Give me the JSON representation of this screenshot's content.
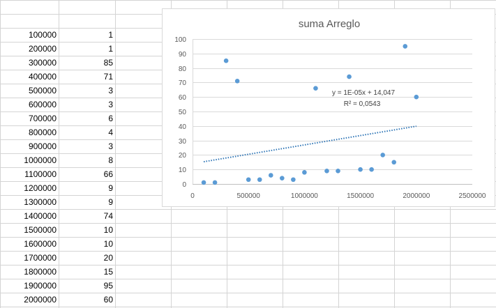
{
  "sheet": {
    "rows": [
      {
        "a": "100000",
        "b": "1"
      },
      {
        "a": "200000",
        "b": "1"
      },
      {
        "a": "300000",
        "b": "85"
      },
      {
        "a": "400000",
        "b": "71"
      },
      {
        "a": "500000",
        "b": "3"
      },
      {
        "a": "600000",
        "b": "3"
      },
      {
        "a": "700000",
        "b": "6"
      },
      {
        "a": "800000",
        "b": "4"
      },
      {
        "a": "900000",
        "b": "3"
      },
      {
        "a": "1000000",
        "b": "8"
      },
      {
        "a": "1100000",
        "b": "66"
      },
      {
        "a": "1200000",
        "b": "9"
      },
      {
        "a": "1300000",
        "b": "9"
      },
      {
        "a": "1400000",
        "b": "74"
      },
      {
        "a": "1500000",
        "b": "10"
      },
      {
        "a": "1600000",
        "b": "10"
      },
      {
        "a": "1700000",
        "b": "20"
      },
      {
        "a": "1800000",
        "b": "15"
      },
      {
        "a": "1900000",
        "b": "95"
      },
      {
        "a": "2000000",
        "b": "60"
      }
    ]
  },
  "chart_data": {
    "type": "scatter",
    "title": "suma Arreglo",
    "xlabel": "",
    "ylabel": "",
    "xlim": [
      0,
      2500000
    ],
    "ylim": [
      0,
      100
    ],
    "x_ticks": [
      0,
      500000,
      1000000,
      1500000,
      2000000,
      2500000
    ],
    "y_ticks": [
      0,
      10,
      20,
      30,
      40,
      50,
      60,
      70,
      80,
      90,
      100
    ],
    "grid": true,
    "legend": "none",
    "series": [
      {
        "x": [
          100000,
          200000,
          300000,
          400000,
          500000,
          600000,
          700000,
          800000,
          900000,
          1000000,
          1100000,
          1200000,
          1300000,
          1400000,
          1500000,
          1600000,
          1700000,
          1800000,
          1900000,
          2000000
        ],
        "y": [
          1,
          1,
          85,
          71,
          3,
          3,
          6,
          4,
          3,
          8,
          66,
          9,
          9,
          74,
          10,
          10,
          20,
          15,
          95,
          60
        ],
        "color": "#5b9bd5"
      }
    ],
    "trendline": {
      "type": "linear",
      "equation": "y = 1E-05x + 14,047",
      "r_squared": "R² = 0,0543",
      "x_range": [
        100000,
        2000000
      ],
      "slope": 1.29e-05,
      "intercept": 14.047,
      "color": "#2e75b6"
    }
  }
}
